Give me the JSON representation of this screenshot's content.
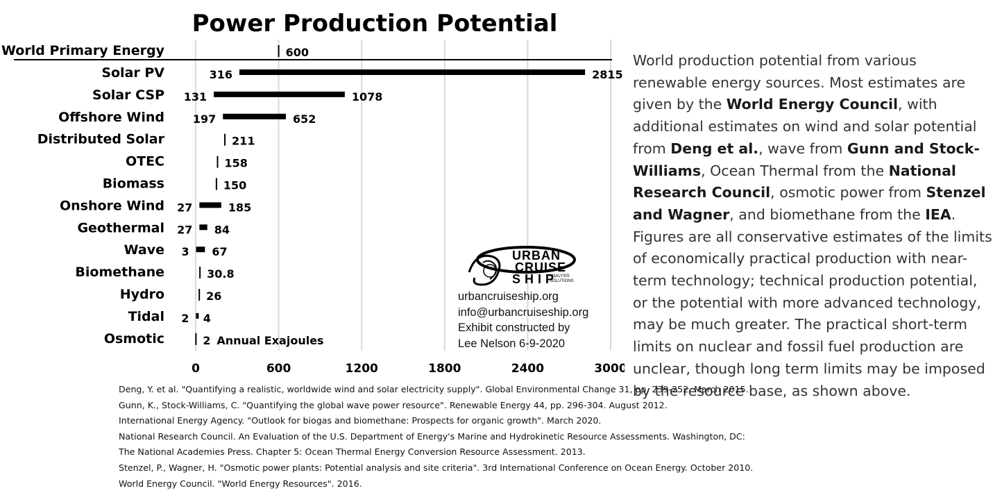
{
  "chart_data": {
    "type": "bar",
    "title": "Power Production Potential",
    "orientation": "horizontal-range",
    "unit_label": "Annual Exajoules",
    "xlim": [
      0,
      3000
    ],
    "xticks": [
      "0",
      "600",
      "1200",
      "1800",
      "2400",
      "3000"
    ],
    "grid": "vertical",
    "reference": {
      "category": "World Primary Energy",
      "value": 600,
      "label": "600"
    },
    "rows": [
      {
        "category": "Solar PV",
        "low": 316,
        "high": 2815,
        "low_label": "316",
        "high_label": "2815"
      },
      {
        "category": "Solar CSP",
        "low": 131,
        "high": 1078,
        "low_label": "131",
        "high_label": "1078"
      },
      {
        "category": "Offshore Wind",
        "low": 197,
        "high": 652,
        "low_label": "197",
        "high_label": "652"
      },
      {
        "category": "Distributed Solar",
        "low": 211,
        "high": 211,
        "low_label": "",
        "high_label": "211"
      },
      {
        "category": "OTEC",
        "low": 158,
        "high": 158,
        "low_label": "",
        "high_label": "158"
      },
      {
        "category": "Biomass",
        "low": 150,
        "high": 150,
        "low_label": "",
        "high_label": "150"
      },
      {
        "category": "Onshore Wind",
        "low": 27,
        "high": 185,
        "low_label": "27",
        "high_label": "185"
      },
      {
        "category": "Geothermal",
        "low": 27,
        "high": 84,
        "low_label": "27",
        "high_label": "84"
      },
      {
        "category": "Wave",
        "low": 3,
        "high": 67,
        "low_label": "3",
        "high_label": "67"
      },
      {
        "category": "Biomethane",
        "low": 30.8,
        "high": 30.8,
        "low_label": "",
        "high_label": "30.8"
      },
      {
        "category": "Hydro",
        "low": 26,
        "high": 26,
        "low_label": "",
        "high_label": "26"
      },
      {
        "category": "Tidal",
        "low": 2,
        "high": 4,
        "low_label": "2",
        "high_label": "4"
      },
      {
        "category": "Osmotic",
        "low": 2,
        "high": 2,
        "low_label": "",
        "high_label": "2"
      }
    ]
  },
  "description": {
    "segments": [
      {
        "text": "World production potential from various renewable energy sources. Most estimates are given by the ",
        "bold": false
      },
      {
        "text": "World Energy Council",
        "bold": true
      },
      {
        "text": ", with additional estimates on wind and solar potential from ",
        "bold": false
      },
      {
        "text": "Deng et al.",
        "bold": true
      },
      {
        "text": ", wave from ",
        "bold": false
      },
      {
        "text": "Gunn and Stock-Williams",
        "bold": true
      },
      {
        "text": ", Ocean Thermal from the ",
        "bold": false
      },
      {
        "text": "National Research Council",
        "bold": true
      },
      {
        "text": ", osmotic power from ",
        "bold": false
      },
      {
        "text": "Stenzel and Wagner",
        "bold": true
      },
      {
        "text": ", and biomethane from the ",
        "bold": false
      },
      {
        "text": "IEA",
        "bold": true
      },
      {
        "text": ". Figures are all conservative estimates of the limits of economically practical production with near-term technology; technical production potential, or the potential with more advanced technology, may be much greater. The practical short-term limits on nuclear and fossil fuel production are unclear, though long term limits may be imposed by the resource base, as shown above.",
        "bold": false
      }
    ]
  },
  "logo": {
    "line1": "URBAN",
    "line2": "CRUISE",
    "line3": "SHIP",
    "sub1": "ANALYSIS",
    "sub2": "SOLUTIONS",
    "reg": "®"
  },
  "contact": {
    "website": "urbancruiseship.org",
    "email": "info@urbancruiseship.org",
    "credit1": "Exhibit constructed by",
    "credit2": "Lee Nelson 6-9-2020"
  },
  "references": [
    "Deng, Y. et al. \"Quantifying a realistic, worldwide wind and solar electricity supply\". Global Environmental Change 31, pp. 239-252. March 2015.",
    "Gunn, K., Stock-Williams, C. \"Quantifying the global wave power resource\". Renewable Energy 44, pp. 296-304. August 2012.",
    "International Energy Agency. \"Outlook for biogas and biomethane: Prospects for organic growth\". March 2020.",
    "National Research Council. An Evaluation of the U.S. Department of Energy's Marine and Hydrokinetic Resource Assessments. Washington, DC:",
    "The National Academies Press. Chapter 5: Ocean Thermal Energy Conversion Resource Assessment. 2013.",
    "Stenzel, P., Wagner, H. \"Osmotic power plants: Potential analysis and site criteria\". 3rd International Conference on Ocean Energy. October 2010.",
    "World Energy Council. \"World Energy Resources\". 2016."
  ]
}
